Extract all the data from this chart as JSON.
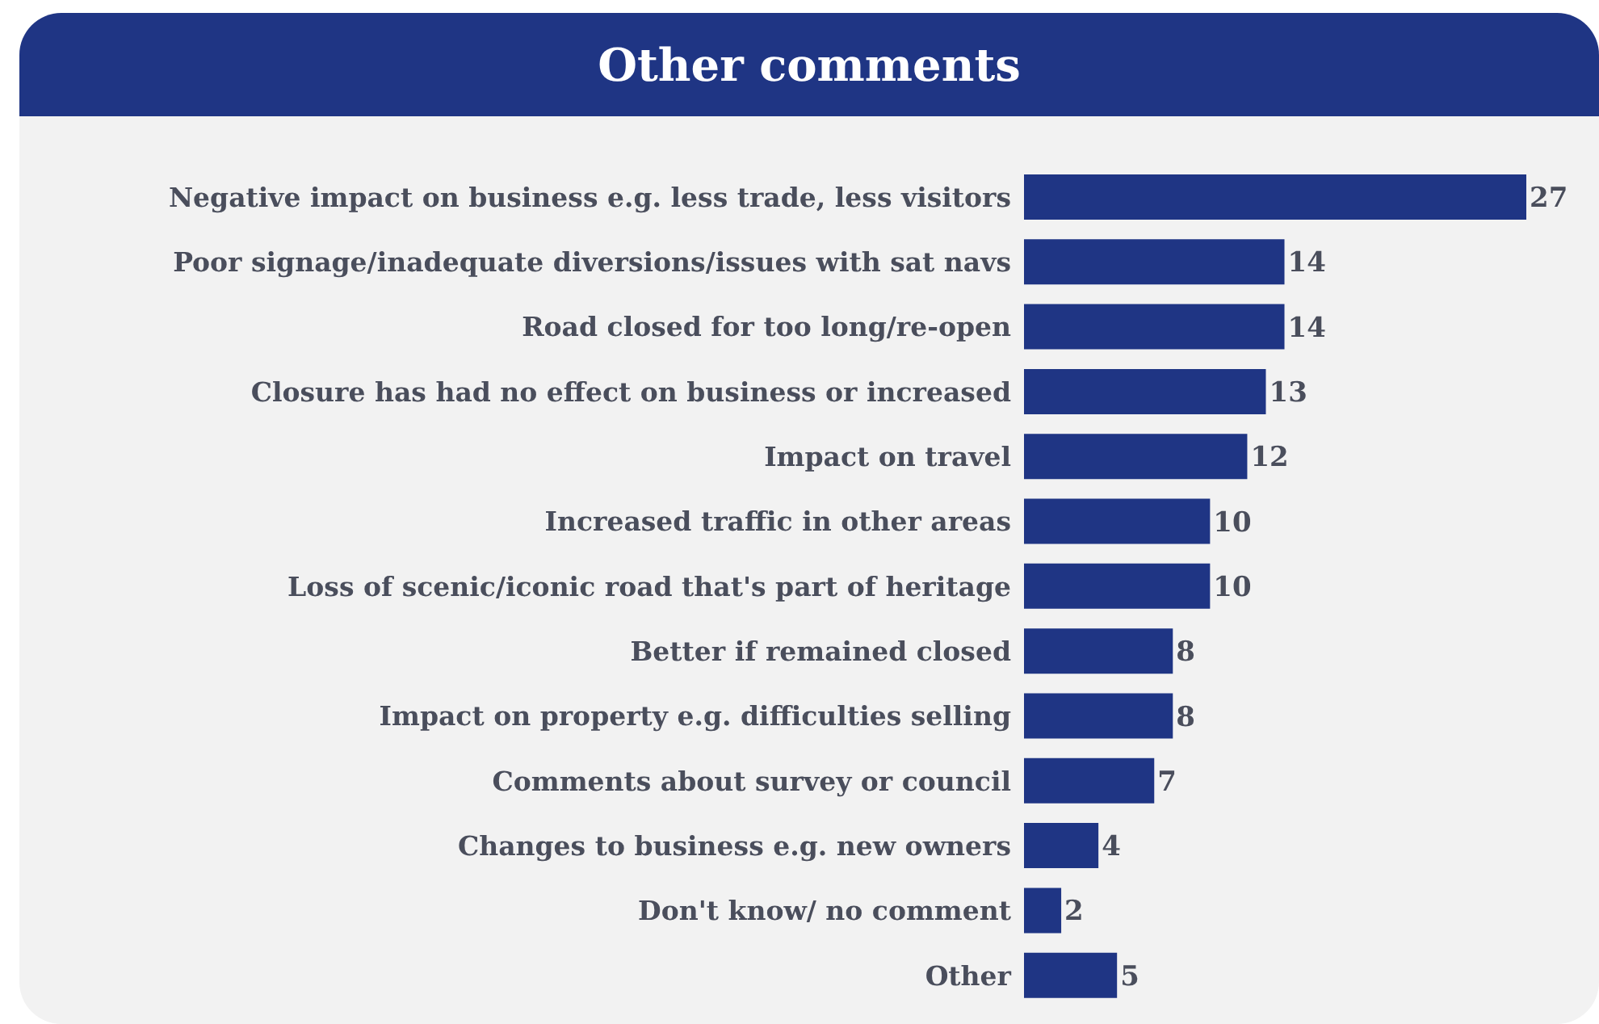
{
  "chart_data": {
    "type": "bar",
    "orientation": "horizontal",
    "title": "Other comments",
    "data_labels": true,
    "color": "#1f3584",
    "categories": [
      "Negative impact on business e.g. less trade, less visitors",
      "Poor signage/inadequate diversions/issues with sat navs",
      "Road closed for too long/re-open",
      "Closure has had no effect on business or increased",
      "Impact on travel",
      "Increased traffic in other areas",
      "Loss of scenic/iconic road that's part of heritage",
      "Better if remained closed",
      "Impact on property e.g. difficulties selling",
      "Comments about survey or council",
      "Changes to business e.g. new owners",
      "Don't know/ no comment",
      "Other"
    ],
    "values": [
      27,
      14,
      14,
      13,
      12,
      10,
      10,
      8,
      8,
      7,
      4,
      2,
      5
    ]
  }
}
